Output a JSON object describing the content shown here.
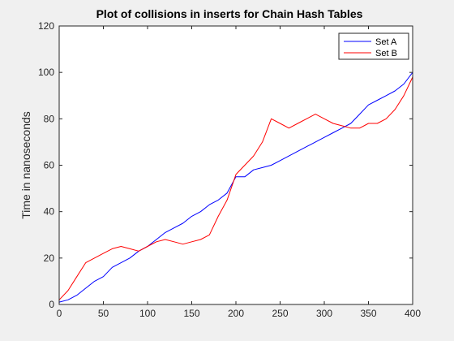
{
  "chart_data": {
    "type": "line",
    "title": "Plot of collisions in inserts for Chain Hash Tables",
    "xlabel": "",
    "ylabel": "Time in nanoseconds",
    "xlim": [
      0,
      400
    ],
    "ylim": [
      0,
      120
    ],
    "x_ticks": [
      0,
      50,
      100,
      150,
      200,
      250,
      300,
      350,
      400
    ],
    "y_ticks": [
      0,
      20,
      40,
      60,
      80,
      100,
      120
    ],
    "grid": false,
    "legend_position": "top-right",
    "x": [
      0,
      10,
      20,
      30,
      40,
      50,
      60,
      70,
      80,
      90,
      100,
      110,
      120,
      130,
      140,
      150,
      160,
      170,
      180,
      190,
      200,
      210,
      220,
      230,
      240,
      250,
      260,
      270,
      280,
      290,
      300,
      310,
      320,
      330,
      340,
      350,
      360,
      370,
      380,
      390,
      400
    ],
    "series": [
      {
        "name": "Set A",
        "color": "#0000ff",
        "values": [
          1,
          2,
          4,
          7,
          10,
          12,
          16,
          18,
          20,
          23,
          25,
          28,
          31,
          33,
          35,
          38,
          40,
          43,
          45,
          48,
          55,
          55,
          58,
          59,
          60,
          62,
          64,
          66,
          68,
          70,
          72,
          74,
          76,
          78,
          82,
          86,
          88,
          90,
          92,
          95,
          100
        ]
      },
      {
        "name": "Set B",
        "color": "#ff0000",
        "values": [
          2,
          6,
          12,
          18,
          20,
          22,
          24,
          25,
          24,
          23,
          25,
          27,
          28,
          27,
          26,
          27,
          28,
          30,
          38,
          45,
          56,
          60,
          64,
          70,
          80,
          78,
          76,
          78,
          80,
          82,
          80,
          78,
          77,
          76,
          76,
          78,
          78,
          80,
          84,
          90,
          98
        ]
      }
    ]
  }
}
